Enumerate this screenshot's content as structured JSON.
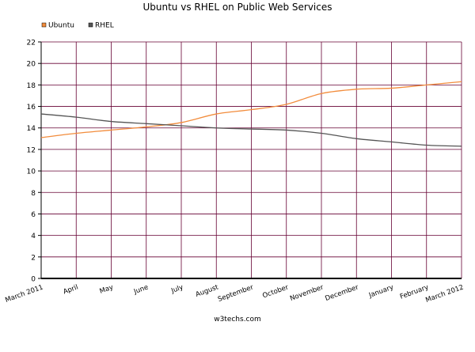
{
  "chart_data": {
    "type": "line",
    "title": "Ubuntu vs RHEL on Public Web Services",
    "xlabel": "",
    "ylabel": "",
    "source": "w3techs.com",
    "categories": [
      "March 2011",
      "April",
      "May",
      "June",
      "July",
      "August",
      "September",
      "October",
      "November",
      "December",
      "January",
      "February",
      "March 2012"
    ],
    "ylim": [
      0,
      22
    ],
    "yticks": [
      0,
      2,
      4,
      6,
      8,
      10,
      12,
      14,
      16,
      18,
      20,
      22
    ],
    "grid": true,
    "legend_position": "top-left",
    "series": [
      {
        "name": "Ubuntu",
        "color": "#f28c3c",
        "values": [
          13.1,
          13.5,
          13.8,
          14.1,
          14.5,
          15.3,
          15.7,
          16.2,
          17.2,
          17.6,
          17.7,
          18.0,
          18.3
        ]
      },
      {
        "name": "RHEL",
        "color": "#555555",
        "values": [
          15.3,
          15.0,
          14.6,
          14.4,
          14.2,
          14.0,
          13.9,
          13.8,
          13.5,
          13.0,
          12.7,
          12.4,
          12.3
        ]
      }
    ],
    "colors": {
      "grid": "#660033",
      "axis": "#000000",
      "text": "#000000"
    }
  }
}
